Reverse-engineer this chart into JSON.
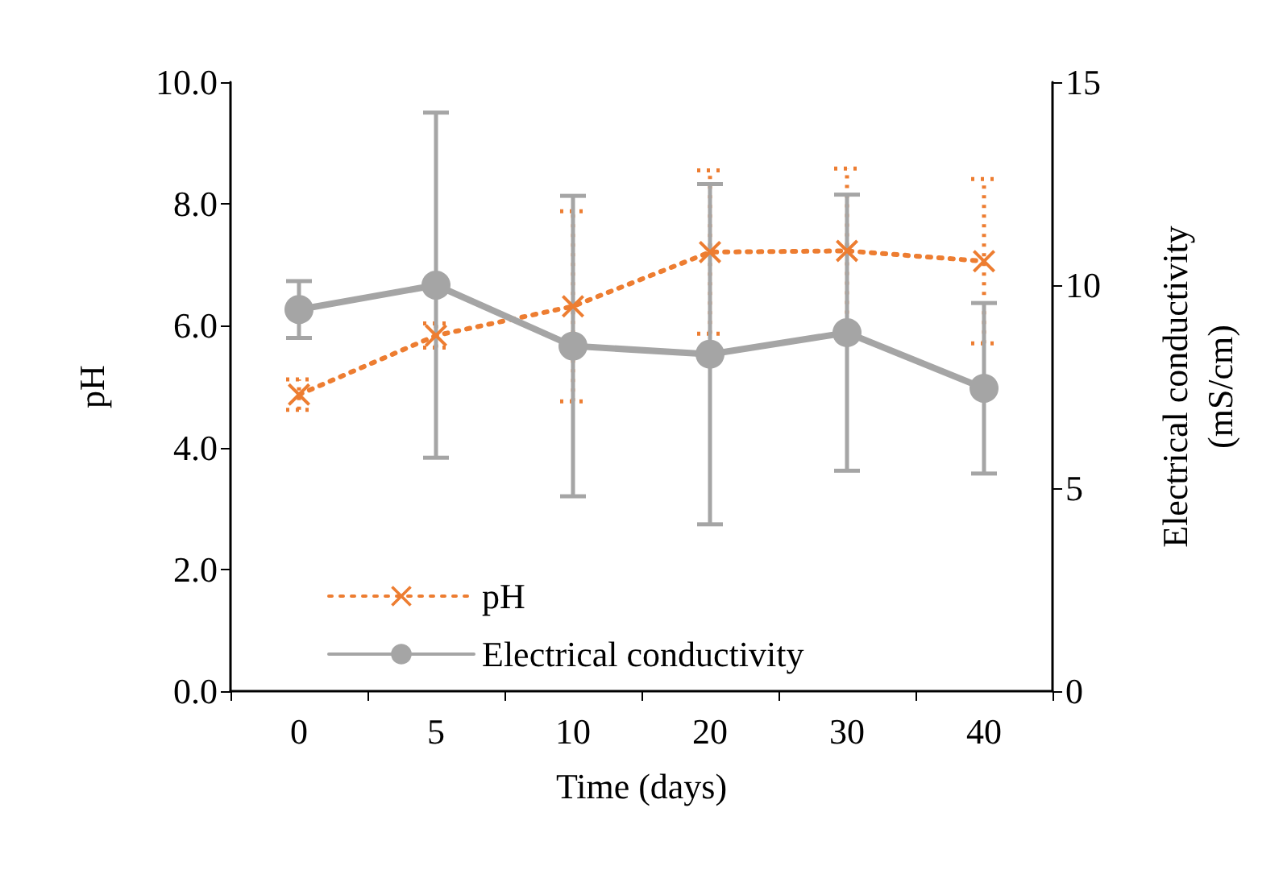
{
  "chart_data": {
    "type": "line",
    "xlabel": "Time (days)",
    "ylabel": "pH",
    "y2label": "Electrical conductivity\n(mS/cm)",
    "categories": [
      "0",
      "5",
      "10",
      "20",
      "30",
      "40"
    ],
    "series": [
      {
        "name": "pH",
        "color": "#ed7d31",
        "values": [
          4.87,
          5.84,
          6.32,
          7.21,
          7.23,
          7.06
        ],
        "errors": [
          0.25,
          0.2,
          1.56,
          1.34,
          1.35,
          1.35
        ],
        "marker": "cross",
        "line_style": "dotted"
      },
      {
        "name": "Electrical conductivity",
        "color": "#a5a5a5",
        "axis": "y2",
        "values": [
          9.4,
          10.0,
          8.5,
          8.3,
          8.83,
          7.46
        ],
        "errors": [
          0.7,
          4.25,
          3.7,
          4.19,
          3.4,
          2.1
        ],
        "marker": "circle",
        "line_style": "solid"
      }
    ],
    "ylim": [
      0,
      10
    ],
    "yticks": [
      {
        "value": 0,
        "label": "0.0"
      },
      {
        "value": 2,
        "label": "2.0"
      },
      {
        "value": 4,
        "label": "4.0"
      },
      {
        "value": 6,
        "label": "6.0"
      },
      {
        "value": 8,
        "label": "8.0"
      },
      {
        "value": 10,
        "label": "10.0"
      }
    ],
    "y2lim": [
      0,
      15
    ],
    "y2ticks": [
      0,
      5,
      10,
      15
    ],
    "grid": false,
    "legend": "bottom left"
  }
}
